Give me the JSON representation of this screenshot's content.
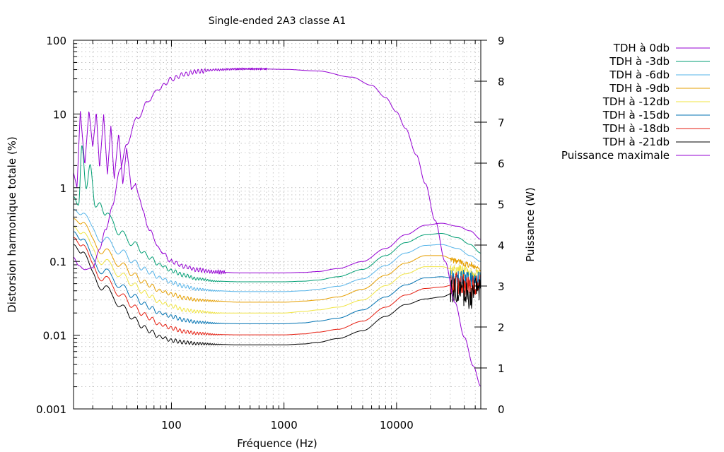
{
  "chart_data": {
    "type": "line",
    "title": "Single-ended 2A3 classe A1",
    "xlabel": "Fréquence (Hz)",
    "ylabel": "Distorsion harmonique totale (%)",
    "y2label": "Puissance (W)",
    "xscale": "log",
    "yscale": "log",
    "y2scale": "linear",
    "xlim": [
      13.5,
      56000
    ],
    "ylim": [
      0.001,
      100
    ],
    "y2lim": [
      0,
      9
    ],
    "grid": true,
    "legend_position": "top-right-outside",
    "x_ticks": [
      {
        "value": 100,
        "label": "100"
      },
      {
        "value": 1000,
        "label": "1000"
      },
      {
        "value": 10000,
        "label": "10000"
      }
    ],
    "y_ticks": [
      {
        "value": 0.001,
        "label": "0.001"
      },
      {
        "value": 0.01,
        "label": "0.01"
      },
      {
        "value": 0.1,
        "label": "0.1"
      },
      {
        "value": 1,
        "label": "1"
      },
      {
        "value": 10,
        "label": "10"
      },
      {
        "value": 100,
        "label": "100"
      }
    ],
    "y2_ticks": [
      {
        "value": 0,
        "label": "0"
      },
      {
        "value": 1,
        "label": "1"
      },
      {
        "value": 2,
        "label": "2"
      },
      {
        "value": 3,
        "label": "3"
      },
      {
        "value": 4,
        "label": "4"
      },
      {
        "value": 5,
        "label": "5"
      },
      {
        "value": 6,
        "label": "6"
      },
      {
        "value": 7,
        "label": "7"
      },
      {
        "value": 8,
        "label": "8"
      },
      {
        "value": 9,
        "label": "9"
      }
    ],
    "series": [
      {
        "name": "TDH à 0db",
        "axis": "y",
        "color": "#9400d3",
        "ripple": "strong",
        "x": [
          13.5,
          14.5,
          15.5,
          17,
          18.5,
          20,
          21.5,
          23,
          25,
          27,
          29,
          31,
          34,
          37,
          40,
          44,
          48,
          55,
          65,
          80,
          100,
          130,
          170,
          250,
          400,
          700,
          1000,
          1500,
          2000,
          3000,
          5000,
          8000,
          12000,
          18000,
          25000,
          35000,
          45000,
          56000
        ],
        "y": [
          1.6,
          1.0,
          11.0,
          2.0,
          11.3,
          3.5,
          10.8,
          1.8,
          9.8,
          1.5,
          7.0,
          1.3,
          5.5,
          1.1,
          3.5,
          0.9,
          1.2,
          0.5,
          0.25,
          0.14,
          0.1,
          0.085,
          0.077,
          0.072,
          0.07,
          0.07,
          0.07,
          0.071,
          0.073,
          0.08,
          0.1,
          0.15,
          0.23,
          0.31,
          0.33,
          0.3,
          0.26,
          0.2
        ]
      },
      {
        "name": "TDH à -3db",
        "axis": "y",
        "color": "#009e73",
        "ripple": "medium",
        "x": [
          13.5,
          15,
          16,
          17.5,
          19,
          21,
          23,
          26,
          30,
          35,
          40,
          50,
          60,
          80,
          100,
          130,
          170,
          250,
          400,
          700,
          1000,
          1500,
          2000,
          3000,
          5000,
          8000,
          12000,
          18000,
          25000,
          35000,
          45000,
          56000
        ],
        "y": [
          0.9,
          0.6,
          3.4,
          0.8,
          1.8,
          0.6,
          0.75,
          0.4,
          0.35,
          0.25,
          0.2,
          0.16,
          0.12,
          0.09,
          0.075,
          0.065,
          0.058,
          0.054,
          0.053,
          0.053,
          0.053,
          0.054,
          0.056,
          0.062,
          0.078,
          0.12,
          0.18,
          0.23,
          0.24,
          0.21,
          0.17,
          0.13
        ]
      },
      {
        "name": "TDH à -6db",
        "axis": "y",
        "color": "#56b4e9",
        "ripple": "medium",
        "x": [
          13.5,
          16,
          20,
          25,
          30,
          40,
          50,
          60,
          80,
          100,
          130,
          170,
          250,
          400,
          700,
          1000,
          1500,
          2000,
          3000,
          5000,
          8000,
          12000,
          18000,
          25000,
          35000,
          45000,
          56000
        ],
        "y": [
          0.6,
          0.4,
          0.28,
          0.2,
          0.16,
          0.12,
          0.09,
          0.075,
          0.06,
          0.052,
          0.046,
          0.042,
          0.04,
          0.039,
          0.039,
          0.039,
          0.04,
          0.042,
          0.046,
          0.058,
          0.088,
          0.13,
          0.165,
          0.17,
          0.15,
          0.12,
          0.1
        ]
      },
      {
        "name": "TDH à -9db",
        "axis": "y",
        "color": "#e69f00",
        "ripple": "medium",
        "x": [
          13.5,
          16,
          20,
          25,
          30,
          40,
          50,
          60,
          80,
          100,
          130,
          170,
          250,
          400,
          700,
          1000,
          1500,
          2000,
          3000,
          5000,
          8000,
          12000,
          18000,
          25000,
          35000,
          45000,
          56000
        ],
        "y": [
          0.45,
          0.3,
          0.2,
          0.14,
          0.11,
          0.08,
          0.06,
          0.05,
          0.04,
          0.036,
          0.032,
          0.03,
          0.029,
          0.028,
          0.028,
          0.028,
          0.029,
          0.03,
          0.033,
          0.042,
          0.065,
          0.095,
          0.12,
          0.12,
          0.1,
          0.09,
          0.08
        ]
      },
      {
        "name": "TDH à -12db",
        "axis": "y",
        "color": "#f0e442",
        "ripple": "medium",
        "x": [
          13.5,
          16,
          20,
          25,
          30,
          40,
          50,
          60,
          80,
          100,
          130,
          170,
          250,
          400,
          700,
          1000,
          1500,
          2000,
          3000,
          5000,
          8000,
          12000,
          18000,
          25000,
          35000,
          45000,
          56000
        ],
        "y": [
          0.35,
          0.22,
          0.15,
          0.1,
          0.08,
          0.058,
          0.044,
          0.036,
          0.028,
          0.025,
          0.022,
          0.021,
          0.02,
          0.02,
          0.02,
          0.02,
          0.021,
          0.022,
          0.024,
          0.03,
          0.047,
          0.068,
          0.085,
          0.085,
          0.075,
          0.07,
          0.065
        ]
      },
      {
        "name": "TDH à -15db",
        "axis": "y",
        "color": "#0072b2",
        "ripple": "medium",
        "x": [
          13.5,
          16,
          20,
          25,
          30,
          40,
          50,
          60,
          80,
          100,
          130,
          170,
          250,
          400,
          700,
          1000,
          1500,
          2000,
          3000,
          5000,
          8000,
          12000,
          18000,
          25000,
          35000,
          45000,
          56000
        ],
        "y": [
          0.3,
          0.18,
          0.11,
          0.075,
          0.058,
          0.04,
          0.031,
          0.025,
          0.02,
          0.018,
          0.016,
          0.015,
          0.0145,
          0.0143,
          0.0143,
          0.0143,
          0.0147,
          0.0155,
          0.017,
          0.022,
          0.033,
          0.048,
          0.06,
          0.062,
          0.058,
          0.06,
          0.055
        ]
      },
      {
        "name": "TDH à -18db",
        "axis": "y",
        "color": "#e51e10",
        "ripple": "medium",
        "x": [
          13.5,
          16,
          20,
          25,
          30,
          40,
          50,
          60,
          80,
          100,
          130,
          170,
          250,
          400,
          700,
          1000,
          1500,
          2000,
          3000,
          5000,
          8000,
          12000,
          18000,
          25000,
          35000,
          45000,
          56000
        ],
        "y": [
          0.25,
          0.15,
          0.09,
          0.06,
          0.045,
          0.03,
          0.022,
          0.018,
          0.014,
          0.0125,
          0.0112,
          0.0106,
          0.0102,
          0.0101,
          0.0101,
          0.0101,
          0.0104,
          0.011,
          0.012,
          0.0155,
          0.024,
          0.035,
          0.043,
          0.045,
          0.05,
          0.045,
          0.05
        ]
      },
      {
        "name": "TDH à -21db",
        "axis": "y",
        "color": "#000000",
        "ripple": "medium",
        "x": [
          13.5,
          16,
          20,
          25,
          30,
          40,
          50,
          60,
          80,
          100,
          130,
          170,
          250,
          400,
          700,
          1000,
          1500,
          2000,
          3000,
          5000,
          8000,
          12000,
          18000,
          25000,
          35000,
          45000,
          56000
        ],
        "y": [
          0.2,
          0.12,
          0.07,
          0.045,
          0.033,
          0.021,
          0.015,
          0.012,
          0.0095,
          0.0085,
          0.008,
          0.0077,
          0.0075,
          0.0074,
          0.0074,
          0.0074,
          0.0076,
          0.008,
          0.009,
          0.0115,
          0.018,
          0.026,
          0.031,
          0.033,
          0.04,
          0.035,
          0.045
        ]
      },
      {
        "name": "Puissance maximale",
        "axis": "y2",
        "color": "#9400d3",
        "ripple": "light",
        "x": [
          13.5,
          15,
          17,
          20,
          23,
          26,
          30,
          35,
          40,
          50,
          60,
          70,
          80,
          100,
          130,
          170,
          250,
          400,
          600,
          1000,
          2000,
          4000,
          6000,
          8000,
          10000,
          12000,
          15000,
          18000,
          22000,
          27000,
          33000,
          40000,
          48000,
          56000
        ],
        "y": [
          3.7,
          3.5,
          3.4,
          3.45,
          3.9,
          4.4,
          5.0,
          5.8,
          6.5,
          7.1,
          7.45,
          7.7,
          7.85,
          8.05,
          8.17,
          8.24,
          8.28,
          8.3,
          8.3,
          8.29,
          8.25,
          8.1,
          7.9,
          7.6,
          7.25,
          6.85,
          6.2,
          5.5,
          4.6,
          3.6,
          2.6,
          1.75,
          1.05,
          0.55
        ]
      }
    ]
  }
}
